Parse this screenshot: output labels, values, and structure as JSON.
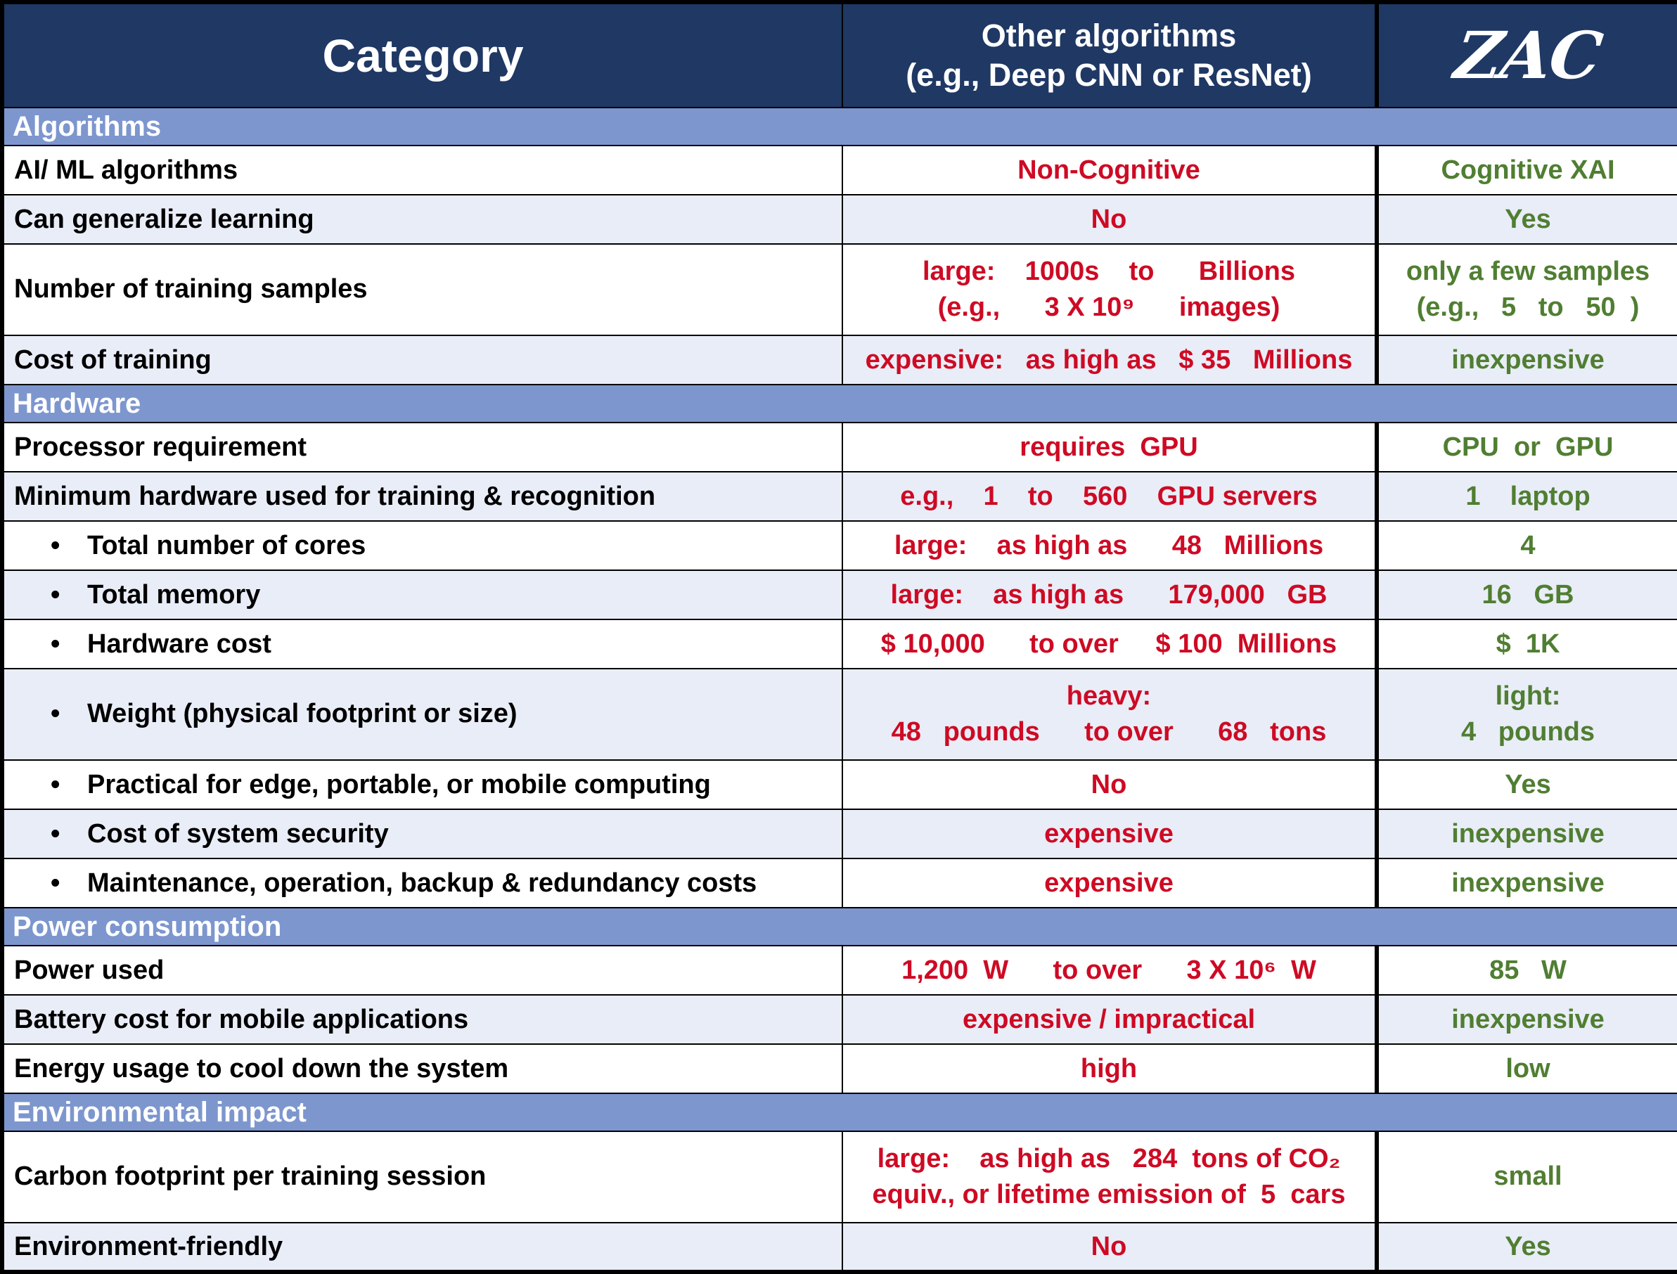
{
  "colors": {
    "header_bg": "#1f3864",
    "section_bg": "#7d96ce",
    "alt_row_bg": "#e9edf7",
    "negative_text": "#ce0a24",
    "positive_text": "#507e32",
    "border": "#000000"
  },
  "header": {
    "category": "Category",
    "other": "Other algorithms\n(e.g., Deep CNN or ResNet)",
    "zac": "ZAC"
  },
  "rows": [
    {
      "type": "section",
      "label": "Algorithms"
    },
    {
      "category": "AI/ ML algorithms",
      "other": "Non-Cognitive",
      "zac": "Cognitive XAI"
    },
    {
      "category": "Can generalize learning",
      "other": "No",
      "zac": "Yes"
    },
    {
      "category": "Number of training samples",
      "other": "large:    1000s    to      Billions\n(e.g.,      3 X 10⁹      images)",
      "zac": "only a few samples\n(e.g.,   5   to   50  )"
    },
    {
      "category": "Cost of training",
      "other": "expensive:   as high as   $ 35   Millions",
      "zac": "inexpensive"
    },
    {
      "type": "section",
      "label": "Hardware"
    },
    {
      "category": "Processor requirement",
      "other": "requires  GPU",
      "zac": "CPU  or  GPU"
    },
    {
      "category": "Minimum hardware used for training & recognition",
      "other": "e.g.,    1    to    560    GPU servers",
      "zac": "1    laptop"
    },
    {
      "category": "Total number of cores",
      "bullet": true,
      "other": "large:    as high as      48   Millions",
      "zac": "4"
    },
    {
      "category": "Total memory",
      "bullet": true,
      "other": "large:    as high as      179,000   GB",
      "zac": "16   GB"
    },
    {
      "category": "Hardware cost",
      "bullet": true,
      "other": "$ 10,000      to over     $ 100  Millions",
      "zac": "$  1K"
    },
    {
      "category": "Weight (physical footprint or size)",
      "bullet": true,
      "other": "heavy:\n48   pounds      to over      68   tons",
      "zac": "light:\n4   pounds"
    },
    {
      "category": "Practical for edge, portable, or mobile computing",
      "bullet": true,
      "other": "No",
      "zac": "Yes"
    },
    {
      "category": "Cost of system security",
      "bullet": true,
      "other": "expensive",
      "zac": "inexpensive"
    },
    {
      "category": "Maintenance, operation, backup & redundancy costs",
      "bullet": true,
      "other": "expensive",
      "zac": "inexpensive"
    },
    {
      "type": "section",
      "label": "Power consumption"
    },
    {
      "category": "Power used",
      "other": "1,200  W      to over      3 X 10⁶  W",
      "zac": "85   W"
    },
    {
      "category": "Battery cost for mobile applications",
      "other": "expensive / impractical",
      "zac": "inexpensive"
    },
    {
      "category": "Energy usage to cool down the system",
      "other": "high",
      "zac": "low"
    },
    {
      "type": "section",
      "label": "Environmental impact"
    },
    {
      "category": "Carbon footprint per training session",
      "other": "large:    as high as   284  tons of CO₂\nequiv., or lifetime emission of  5  cars",
      "zac": "small"
    },
    {
      "category": "Environment-friendly",
      "other": "No",
      "zac": "Yes"
    }
  ]
}
